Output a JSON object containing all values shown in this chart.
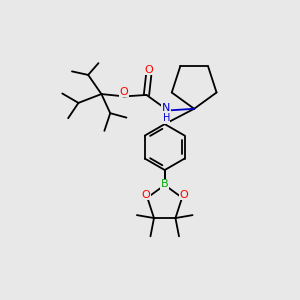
{
  "background_color": "#e8e8e8",
  "bond_color": "#000000",
  "atom_colors": {
    "O": "#ff0000",
    "N": "#0000cc",
    "B": "#00aa00",
    "C": "#000000"
  },
  "lw": 1.3
}
